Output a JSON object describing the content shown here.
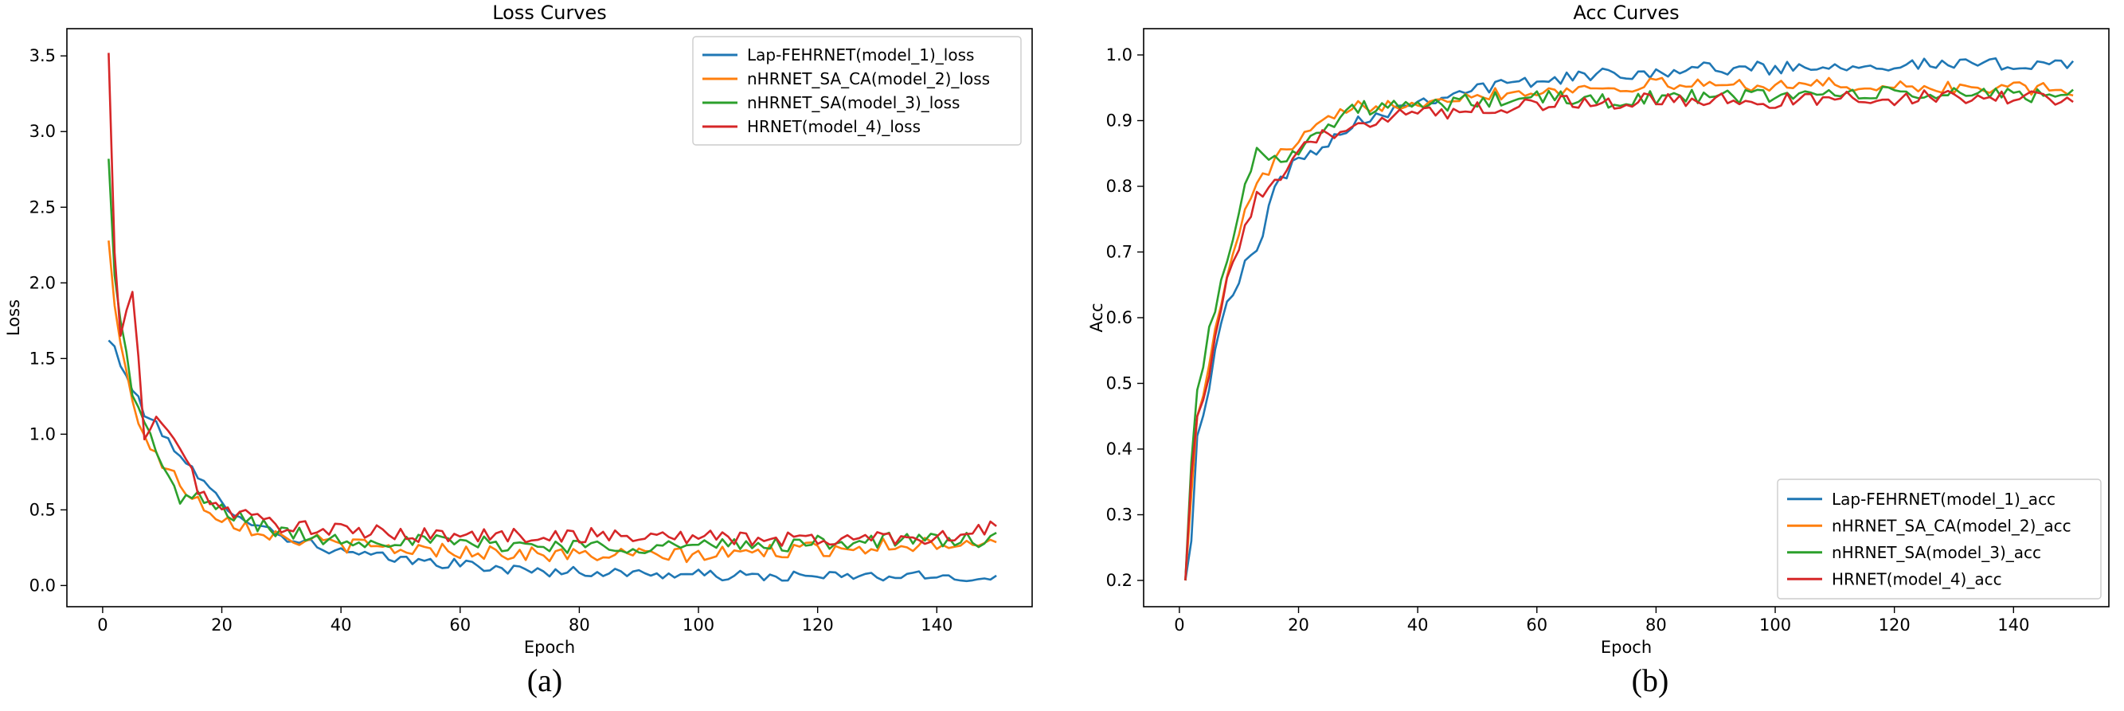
{
  "chart_data": [
    {
      "type": "line",
      "title": "Loss Curves",
      "xlabel": "Epoch",
      "ylabel": "Loss",
      "caption": "(a)",
      "xlim": [
        -6,
        156
      ],
      "ylim": [
        -0.14,
        3.68
      ],
      "xticks": [
        0,
        20,
        40,
        60,
        80,
        100,
        120,
        140
      ],
      "yticks": [
        0.0,
        0.5,
        1.0,
        1.5,
        2.0,
        2.5,
        3.0,
        3.5
      ],
      "ytick_labels": [
        "0.0",
        "0.5",
        "1.0",
        "1.5",
        "2.0",
        "2.5",
        "3.0",
        "3.5"
      ],
      "legend": "top-right",
      "series": [
        {
          "name": "Lap-FEHRNET(model_1)_loss",
          "color": "#1f77b4",
          "anchors": [
            [
              1,
              1.62
            ],
            [
              2,
              1.58
            ],
            [
              3,
              1.45
            ],
            [
              5,
              1.3
            ],
            [
              7,
              1.15
            ],
            [
              10,
              1.0
            ],
            [
              13,
              0.88
            ],
            [
              16,
              0.7
            ],
            [
              20,
              0.55
            ],
            [
              25,
              0.42
            ],
            [
              30,
              0.33
            ],
            [
              40,
              0.22
            ],
            [
              50,
              0.17
            ],
            [
              60,
              0.14
            ],
            [
              70,
              0.1
            ],
            [
              80,
              0.09
            ],
            [
              90,
              0.08
            ],
            [
              100,
              0.07
            ],
            [
              110,
              0.06
            ],
            [
              120,
              0.06
            ],
            [
              130,
              0.06
            ],
            [
              140,
              0.06
            ],
            [
              150,
              0.05
            ]
          ],
          "noise": 0.035
        },
        {
          "name": "nHRNET_SA_CA(model_2)_loss",
          "color": "#ff7f0e",
          "anchors": [
            [
              1,
              2.28
            ],
            [
              2,
              1.85
            ],
            [
              3,
              1.6
            ],
            [
              5,
              1.2
            ],
            [
              7,
              1.0
            ],
            [
              10,
              0.8
            ],
            [
              13,
              0.68
            ],
            [
              16,
              0.56
            ],
            [
              20,
              0.45
            ],
            [
              25,
              0.38
            ],
            [
              30,
              0.32
            ],
            [
              40,
              0.27
            ],
            [
              50,
              0.24
            ],
            [
              60,
              0.23
            ],
            [
              70,
              0.21
            ],
            [
              80,
              0.2
            ],
            [
              90,
              0.2
            ],
            [
              100,
              0.2
            ],
            [
              110,
              0.22
            ],
            [
              120,
              0.24
            ],
            [
              130,
              0.26
            ],
            [
              140,
              0.28
            ],
            [
              150,
              0.3
            ]
          ],
          "noise": 0.05
        },
        {
          "name": "nHRNET_SA(model_3)_loss",
          "color": "#2ca02c",
          "anchors": [
            [
              1,
              2.82
            ],
            [
              2,
              2.05
            ],
            [
              3,
              1.75
            ],
            [
              5,
              1.3
            ],
            [
              7,
              1.05
            ],
            [
              10,
              0.82
            ],
            [
              13,
              0.55
            ],
            [
              16,
              0.58
            ],
            [
              20,
              0.5
            ],
            [
              25,
              0.42
            ],
            [
              30,
              0.35
            ],
            [
              40,
              0.3
            ],
            [
              50,
              0.3
            ],
            [
              60,
              0.28
            ],
            [
              70,
              0.27
            ],
            [
              80,
              0.26
            ],
            [
              90,
              0.26
            ],
            [
              100,
              0.26
            ],
            [
              110,
              0.27
            ],
            [
              120,
              0.28
            ],
            [
              130,
              0.3
            ],
            [
              140,
              0.3
            ],
            [
              150,
              0.3
            ]
          ],
          "noise": 0.05
        },
        {
          "name": "HRNET(model_4)_loss",
          "color": "#d62728",
          "anchors": [
            [
              1,
              3.52
            ],
            [
              2,
              2.2
            ],
            [
              3,
              1.65
            ],
            [
              5,
              1.95
            ],
            [
              7,
              1.0
            ],
            [
              10,
              1.1
            ],
            [
              13,
              0.9
            ],
            [
              16,
              0.65
            ],
            [
              20,
              0.5
            ],
            [
              25,
              0.45
            ],
            [
              30,
              0.4
            ],
            [
              40,
              0.36
            ],
            [
              50,
              0.34
            ],
            [
              60,
              0.33
            ],
            [
              70,
              0.33
            ],
            [
              80,
              0.33
            ],
            [
              90,
              0.33
            ],
            [
              100,
              0.32
            ],
            [
              110,
              0.31
            ],
            [
              120,
              0.3
            ],
            [
              130,
              0.32
            ],
            [
              140,
              0.32
            ],
            [
              150,
              0.38
            ]
          ],
          "noise": 0.05
        }
      ]
    },
    {
      "type": "line",
      "title": "Acc Curves",
      "xlabel": "Epoch",
      "ylabel": "Acc",
      "caption": "(b)",
      "xlim": [
        -6,
        156
      ],
      "ylim": [
        0.16,
        1.04
      ],
      "xticks": [
        0,
        20,
        40,
        60,
        80,
        100,
        120,
        140
      ],
      "yticks": [
        0.2,
        0.3,
        0.4,
        0.5,
        0.6,
        0.7,
        0.8,
        0.9,
        1.0
      ],
      "ytick_labels": [
        "0.2",
        "0.3",
        "0.4",
        "0.5",
        "0.6",
        "0.7",
        "0.8",
        "0.9",
        "1.0"
      ],
      "legend": "bottom-right",
      "series": [
        {
          "name": "Lap-FEHRNET(model_1)_acc",
          "color": "#1f77b4",
          "anchors": [
            [
              1,
              0.2
            ],
            [
              2,
              0.26
            ],
            [
              3,
              0.42
            ],
            [
              5,
              0.5
            ],
            [
              7,
              0.6
            ],
            [
              9,
              0.63
            ],
            [
              11,
              0.68
            ],
            [
              13,
              0.7
            ],
            [
              16,
              0.8
            ],
            [
              20,
              0.84
            ],
            [
              25,
              0.87
            ],
            [
              30,
              0.9
            ],
            [
              40,
              0.93
            ],
            [
              50,
              0.95
            ],
            [
              60,
              0.96
            ],
            [
              70,
              0.97
            ],
            [
              80,
              0.975
            ],
            [
              90,
              0.98
            ],
            [
              100,
              0.98
            ],
            [
              110,
              0.985
            ],
            [
              120,
              0.985
            ],
            [
              130,
              0.985
            ],
            [
              140,
              0.985
            ],
            [
              150,
              0.99
            ]
          ],
          "noise": 0.01
        },
        {
          "name": "nHRNET_SA_CA(model_2)_acc",
          "color": "#ff7f0e",
          "anchors": [
            [
              1,
              0.2
            ],
            [
              2,
              0.33
            ],
            [
              3,
              0.45
            ],
            [
              5,
              0.53
            ],
            [
              7,
              0.62
            ],
            [
              9,
              0.7
            ],
            [
              11,
              0.76
            ],
            [
              13,
              0.8
            ],
            [
              16,
              0.84
            ],
            [
              20,
              0.87
            ],
            [
              25,
              0.9
            ],
            [
              30,
              0.92
            ],
            [
              40,
              0.93
            ],
            [
              50,
              0.94
            ],
            [
              60,
              0.945
            ],
            [
              70,
              0.95
            ],
            [
              80,
              0.955
            ],
            [
              90,
              0.955
            ],
            [
              100,
              0.955
            ],
            [
              110,
              0.955
            ],
            [
              120,
              0.95
            ],
            [
              130,
              0.95
            ],
            [
              140,
              0.95
            ],
            [
              150,
              0.945
            ]
          ],
          "noise": 0.01
        },
        {
          "name": "nHRNET_SA(model_3)_acc",
          "color": "#2ca02c",
          "anchors": [
            [
              1,
              0.2
            ],
            [
              2,
              0.38
            ],
            [
              3,
              0.49
            ],
            [
              5,
              0.58
            ],
            [
              7,
              0.65
            ],
            [
              9,
              0.73
            ],
            [
              11,
              0.8
            ],
            [
              13,
              0.85
            ],
            [
              16,
              0.84
            ],
            [
              20,
              0.86
            ],
            [
              25,
              0.89
            ],
            [
              30,
              0.92
            ],
            [
              40,
              0.92
            ],
            [
              50,
              0.93
            ],
            [
              60,
              0.935
            ],
            [
              70,
              0.93
            ],
            [
              80,
              0.935
            ],
            [
              90,
              0.935
            ],
            [
              100,
              0.94
            ],
            [
              110,
              0.94
            ],
            [
              120,
              0.94
            ],
            [
              130,
              0.94
            ],
            [
              140,
              0.94
            ],
            [
              150,
              0.94
            ]
          ],
          "noise": 0.012
        },
        {
          "name": "HRNET(model_4)_acc",
          "color": "#d62728",
          "anchors": [
            [
              1,
              0.2
            ],
            [
              2,
              0.36
            ],
            [
              3,
              0.45
            ],
            [
              5,
              0.52
            ],
            [
              7,
              0.62
            ],
            [
              9,
              0.68
            ],
            [
              11,
              0.74
            ],
            [
              13,
              0.78
            ],
            [
              16,
              0.8
            ],
            [
              20,
              0.85
            ],
            [
              25,
              0.88
            ],
            [
              30,
              0.9
            ],
            [
              40,
              0.91
            ],
            [
              50,
              0.92
            ],
            [
              60,
              0.925
            ],
            [
              70,
              0.93
            ],
            [
              80,
              0.93
            ],
            [
              90,
              0.93
            ],
            [
              100,
              0.93
            ],
            [
              110,
              0.935
            ],
            [
              120,
              0.935
            ],
            [
              130,
              0.935
            ],
            [
              140,
              0.935
            ],
            [
              150,
              0.93
            ]
          ],
          "noise": 0.012
        }
      ]
    }
  ]
}
